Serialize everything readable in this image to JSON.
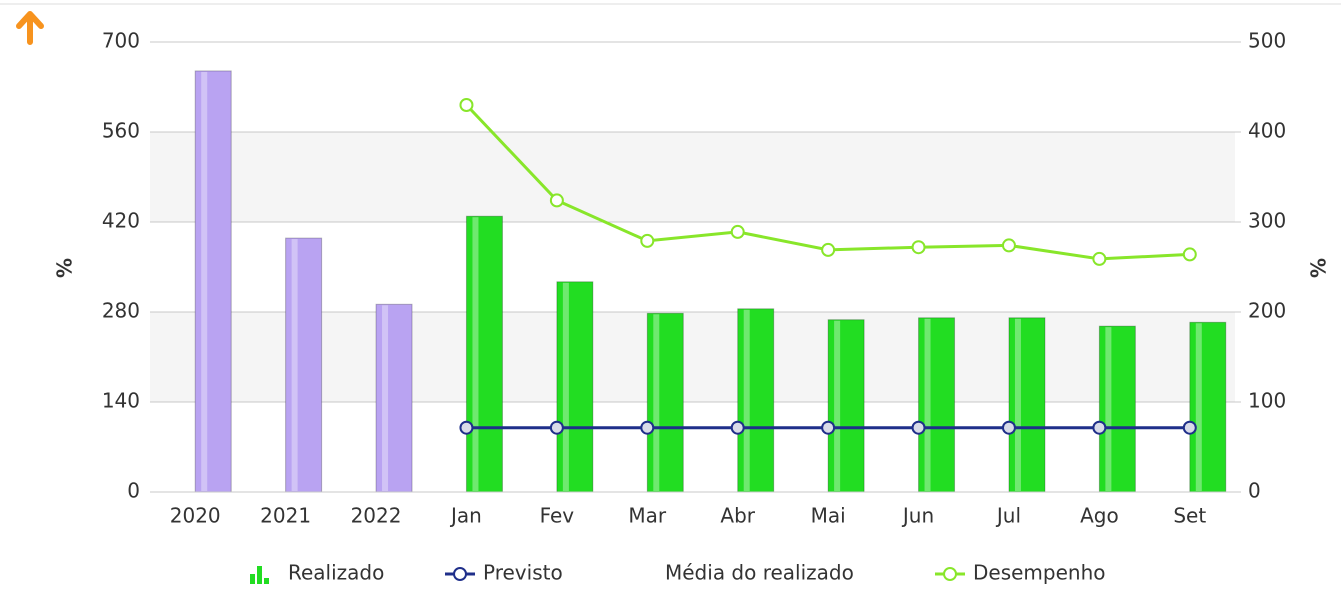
{
  "chart_data": {
    "type": "bar",
    "categories": [
      "2020",
      "2021",
      "2022",
      "Jan",
      "Fev",
      "Mar",
      "Abr",
      "Mai",
      "Jun",
      "Jul",
      "Ago",
      "Set"
    ],
    "series": [
      {
        "name": "Realizado",
        "type": "bar",
        "color": "#22dd22",
        "point_colors": [
          "#b9a3f2",
          "#b9a3f2",
          "#b9a3f2",
          "#22dd22",
          "#22dd22",
          "#22dd22",
          "#22dd22",
          "#22dd22",
          "#22dd22",
          "#22dd22",
          "#22dd22",
          "#22dd22"
        ],
        "values": [
          655,
          395,
          292,
          429,
          327,
          278,
          285,
          268,
          271,
          271,
          258,
          264
        ]
      },
      {
        "name": "Previsto",
        "type": "line",
        "color": "#1f2f8a",
        "values": [
          null,
          null,
          null,
          100,
          100,
          100,
          100,
          100,
          100,
          100,
          100,
          100
        ]
      },
      {
        "name": "Média do realizado"
      },
      {
        "name": "Desempenho",
        "type": "line",
        "color": "#88e62a",
        "axis": "y2",
        "values": [
          null,
          null,
          null,
          430,
          324,
          279,
          289,
          269,
          272,
          274,
          259,
          264
        ]
      }
    ],
    "ylabel": "%",
    "y2label": "%",
    "ylim": [
      0,
      700
    ],
    "yticks": [
      0,
      140,
      280,
      420,
      560,
      700
    ],
    "y2lim": [
      0,
      500
    ],
    "y2ticks": [
      0,
      100,
      200,
      300,
      400,
      500
    ],
    "grid": true,
    "legend": "bottom"
  }
}
